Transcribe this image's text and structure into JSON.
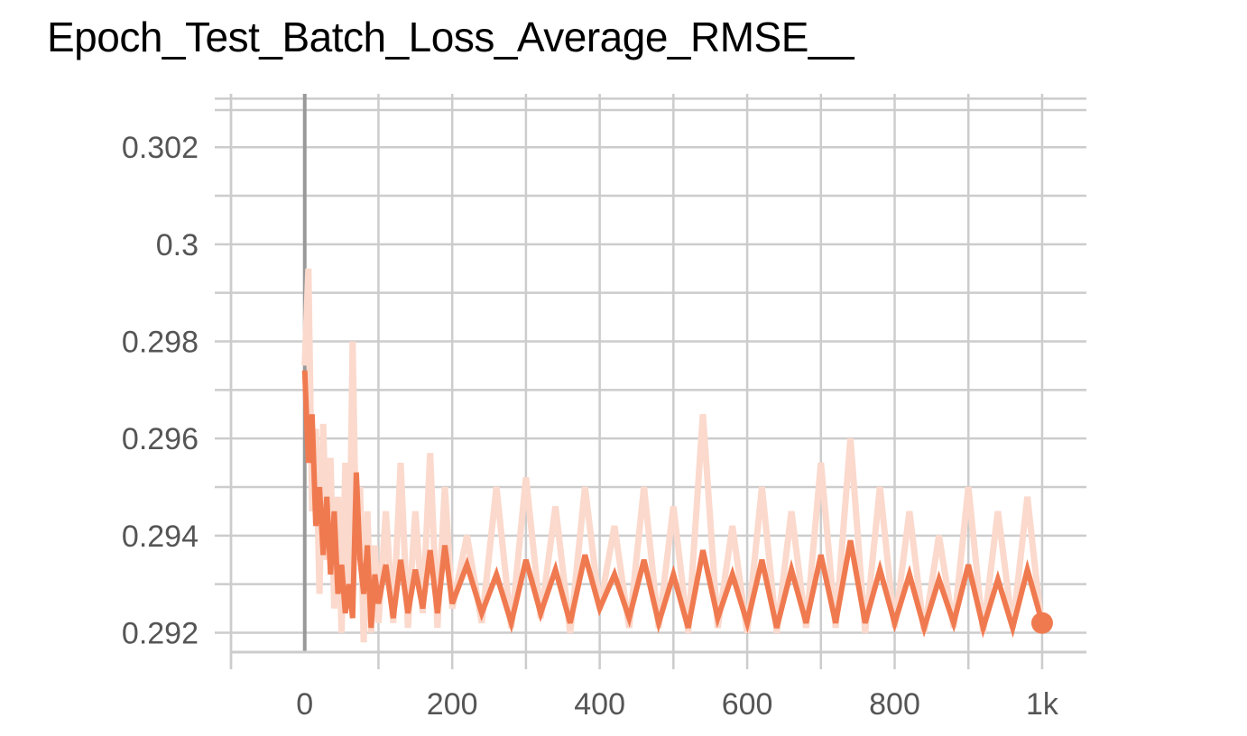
{
  "chart_data": {
    "type": "line",
    "title": "Epoch_Test_Batch_Loss_Average_RMSE__",
    "xlabel": "",
    "ylabel": "",
    "xlim": [
      -100,
      1060
    ],
    "ylim": [
      0.2916,
      0.3031
    ],
    "x_ticks": [
      "0",
      "200",
      "400",
      "600",
      "800",
      "1k"
    ],
    "y_ticks": [
      "0.292",
      "0.294",
      "0.296",
      "0.298",
      "0.3",
      "0.302"
    ],
    "grid": true,
    "colors": {
      "smoothed": "#f07a50",
      "raw": "#fbd9cc",
      "grid": "#cccccc",
      "zero_line": "#999999"
    },
    "series": [
      {
        "role": "raw",
        "x": [
          0,
          5,
          10,
          15,
          20,
          25,
          30,
          35,
          40,
          45,
          50,
          55,
          60,
          65,
          70,
          75,
          80,
          85,
          90,
          95,
          100,
          110,
          120,
          130,
          140,
          150,
          160,
          170,
          180,
          190,
          200,
          220,
          240,
          260,
          280,
          300,
          320,
          340,
          360,
          380,
          400,
          420,
          440,
          460,
          480,
          500,
          520,
          540,
          560,
          580,
          600,
          620,
          640,
          660,
          680,
          700,
          720,
          740,
          760,
          780,
          800,
          820,
          840,
          860,
          880,
          900,
          920,
          940,
          960,
          980,
          1000
        ],
        "y": [
          0.2975,
          0.2995,
          0.2945,
          0.2962,
          0.2928,
          0.2963,
          0.2935,
          0.2956,
          0.2925,
          0.2948,
          0.292,
          0.2955,
          0.2925,
          0.298,
          0.2935,
          0.295,
          0.2918,
          0.2945,
          0.292,
          0.2938,
          0.2922,
          0.2945,
          0.2922,
          0.2955,
          0.2921,
          0.2945,
          0.2924,
          0.2957,
          0.2921,
          0.295,
          0.2925,
          0.294,
          0.2922,
          0.295,
          0.2921,
          0.2952,
          0.2923,
          0.2946,
          0.292,
          0.295,
          0.2925,
          0.2942,
          0.2921,
          0.295,
          0.2921,
          0.2946,
          0.292,
          0.2965,
          0.2921,
          0.2942,
          0.292,
          0.295,
          0.292,
          0.2945,
          0.2921,
          0.2955,
          0.2921,
          0.296,
          0.292,
          0.295,
          0.2921,
          0.2945,
          0.292,
          0.294,
          0.2921,
          0.295,
          0.292,
          0.2945,
          0.2921,
          0.2948,
          0.292
        ]
      },
      {
        "role": "smoothed",
        "x": [
          0,
          5,
          10,
          15,
          20,
          25,
          30,
          35,
          40,
          45,
          50,
          55,
          60,
          65,
          70,
          75,
          80,
          85,
          90,
          95,
          100,
          110,
          120,
          130,
          140,
          150,
          160,
          170,
          180,
          190,
          200,
          220,
          240,
          260,
          280,
          300,
          320,
          340,
          360,
          380,
          400,
          420,
          440,
          460,
          480,
          500,
          520,
          540,
          560,
          580,
          600,
          620,
          640,
          660,
          680,
          700,
          720,
          740,
          760,
          780,
          800,
          820,
          840,
          860,
          880,
          900,
          920,
          940,
          960,
          980,
          1000
        ],
        "y": [
          0.2974,
          0.2955,
          0.2965,
          0.2942,
          0.295,
          0.2936,
          0.2948,
          0.2932,
          0.2945,
          0.2928,
          0.2934,
          0.2924,
          0.293,
          0.2923,
          0.2953,
          0.2935,
          0.2928,
          0.2938,
          0.2921,
          0.2932,
          0.2926,
          0.2934,
          0.2923,
          0.2935,
          0.2924,
          0.2933,
          0.2925,
          0.2937,
          0.2924,
          0.2938,
          0.2926,
          0.2934,
          0.2924,
          0.2932,
          0.2922,
          0.2935,
          0.2924,
          0.2933,
          0.2922,
          0.2936,
          0.2925,
          0.2932,
          0.2923,
          0.2935,
          0.2922,
          0.2932,
          0.2921,
          0.2937,
          0.2923,
          0.2932,
          0.2922,
          0.2935,
          0.2921,
          0.2933,
          0.2922,
          0.2936,
          0.2922,
          0.2939,
          0.2922,
          0.2933,
          0.2922,
          0.2932,
          0.2921,
          0.2931,
          0.2922,
          0.2934,
          0.2921,
          0.2931,
          0.2921,
          0.2933,
          0.2922
        ]
      }
    ]
  }
}
